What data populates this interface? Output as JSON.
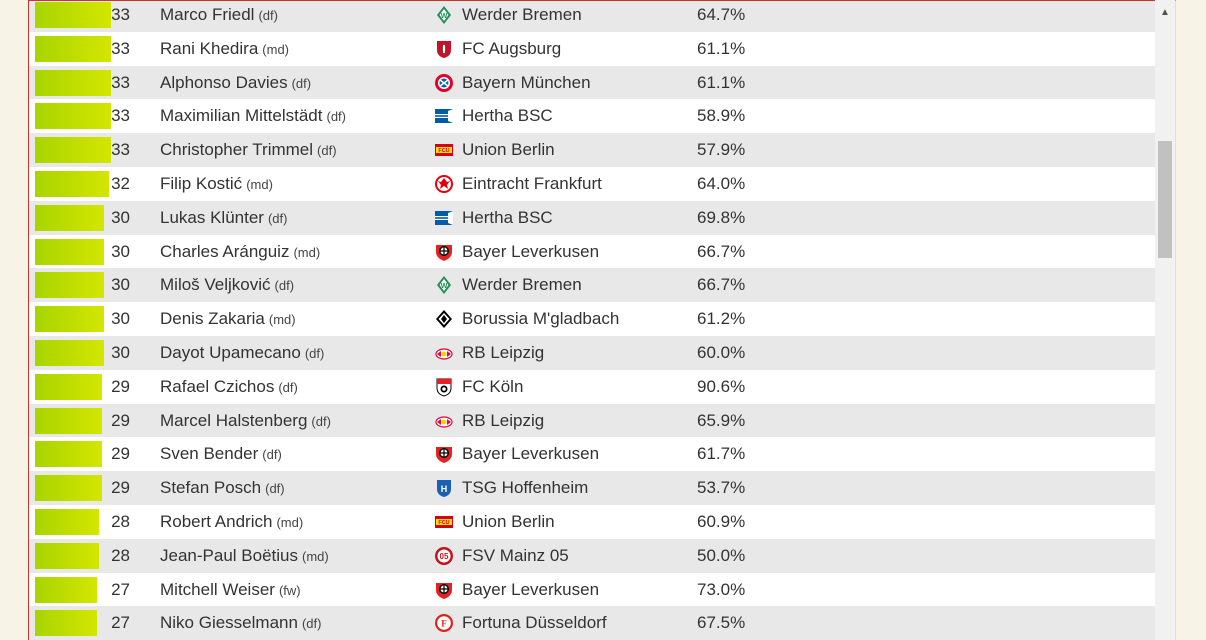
{
  "colors": {
    "bar_start": "#a8d400",
    "bar_end": "#d4e600",
    "row_alt": "#e8e8e8",
    "frame_accent": "#c0392b"
  },
  "rows": [
    {
      "value": 33,
      "bar_fraction": 0.33,
      "name": "Marco Friedl",
      "pos": "(df)",
      "club": "Werder Bremen",
      "club_icon": "werder-bremen-crest-icon",
      "pct": "64.7%"
    },
    {
      "value": 33,
      "bar_fraction": 0.33,
      "name": "Rani Khedira",
      "pos": "(md)",
      "club": "FC Augsburg",
      "club_icon": "fc-augsburg-crest-icon",
      "pct": "61.1%"
    },
    {
      "value": 33,
      "bar_fraction": 0.33,
      "name": "Alphonso Davies",
      "pos": "(df)",
      "club": "Bayern München",
      "club_icon": "bayern-muenchen-crest-icon",
      "pct": "61.1%"
    },
    {
      "value": 33,
      "bar_fraction": 0.33,
      "name": "Maximilian Mittelstädt",
      "pos": "(df)",
      "club": "Hertha BSC",
      "club_icon": "hertha-bsc-crest-icon",
      "pct": "58.9%"
    },
    {
      "value": 33,
      "bar_fraction": 0.33,
      "name": "Christopher Trimmel",
      "pos": "(df)",
      "club": "Union Berlin",
      "club_icon": "union-berlin-crest-icon",
      "pct": "57.9%"
    },
    {
      "value": 32,
      "bar_fraction": 0.32,
      "name": "Filip Kostić",
      "pos": "(md)",
      "club": "Eintracht Frankfurt",
      "club_icon": "eintracht-frankfurt-crest-icon",
      "pct": "64.0%"
    },
    {
      "value": 30,
      "bar_fraction": 0.3,
      "name": "Lukas Klünter",
      "pos": "(df)",
      "club": "Hertha BSC",
      "club_icon": "hertha-bsc-crest-icon",
      "pct": "69.8%"
    },
    {
      "value": 30,
      "bar_fraction": 0.3,
      "name": "Charles Aránguiz",
      "pos": "(md)",
      "club": "Bayer Leverkusen",
      "club_icon": "bayer-leverkusen-crest-icon",
      "pct": "66.7%"
    },
    {
      "value": 30,
      "bar_fraction": 0.3,
      "name": "Miloš Veljković",
      "pos": "(df)",
      "club": "Werder Bremen",
      "club_icon": "werder-bremen-crest-icon",
      "pct": "66.7%"
    },
    {
      "value": 30,
      "bar_fraction": 0.3,
      "name": "Denis Zakaria",
      "pos": "(md)",
      "club": "Borussia M'gladbach",
      "club_icon": "borussia-mgladbach-crest-icon",
      "pct": "61.2%"
    },
    {
      "value": 30,
      "bar_fraction": 0.3,
      "name": "Dayot Upamecano",
      "pos": "(df)",
      "club": "RB Leipzig",
      "club_icon": "rb-leipzig-crest-icon",
      "pct": "60.0%"
    },
    {
      "value": 29,
      "bar_fraction": 0.29,
      "name": "Rafael Czichos",
      "pos": "(df)",
      "club": "FC Köln",
      "club_icon": "fc-koeln-crest-icon",
      "pct": "90.6%"
    },
    {
      "value": 29,
      "bar_fraction": 0.29,
      "name": "Marcel Halstenberg",
      "pos": "(df)",
      "club": "RB Leipzig",
      "club_icon": "rb-leipzig-crest-icon",
      "pct": "65.9%"
    },
    {
      "value": 29,
      "bar_fraction": 0.29,
      "name": "Sven Bender",
      "pos": "(df)",
      "club": "Bayer Leverkusen",
      "club_icon": "bayer-leverkusen-crest-icon",
      "pct": "61.7%"
    },
    {
      "value": 29,
      "bar_fraction": 0.29,
      "name": "Stefan Posch",
      "pos": "(df)",
      "club": "TSG Hoffenheim",
      "club_icon": "tsg-hoffenheim-crest-icon",
      "pct": "53.7%"
    },
    {
      "value": 28,
      "bar_fraction": 0.28,
      "name": "Robert Andrich",
      "pos": "(md)",
      "club": "Union Berlin",
      "club_icon": "union-berlin-crest-icon",
      "pct": "60.9%"
    },
    {
      "value": 28,
      "bar_fraction": 0.28,
      "name": "Jean-Paul Boëtius",
      "pos": "(md)",
      "club": "FSV Mainz 05",
      "club_icon": "fsv-mainz-crest-icon",
      "pct": "50.0%"
    },
    {
      "value": 27,
      "bar_fraction": 0.27,
      "name": "Mitchell Weiser",
      "pos": "(fw)",
      "club": "Bayer Leverkusen",
      "club_icon": "bayer-leverkusen-crest-icon",
      "pct": "73.0%"
    },
    {
      "value": 27,
      "bar_fraction": 0.27,
      "name": "Niko Giesselmann",
      "pos": "(df)",
      "club": "Fortuna Düsseldorf",
      "club_icon": "fortuna-duesseldorf-crest-icon",
      "pct": "67.5%"
    }
  ],
  "scrollbar": {
    "up_arrow_icon": "scroll-up-arrow-icon",
    "position_fraction": 0.24
  }
}
